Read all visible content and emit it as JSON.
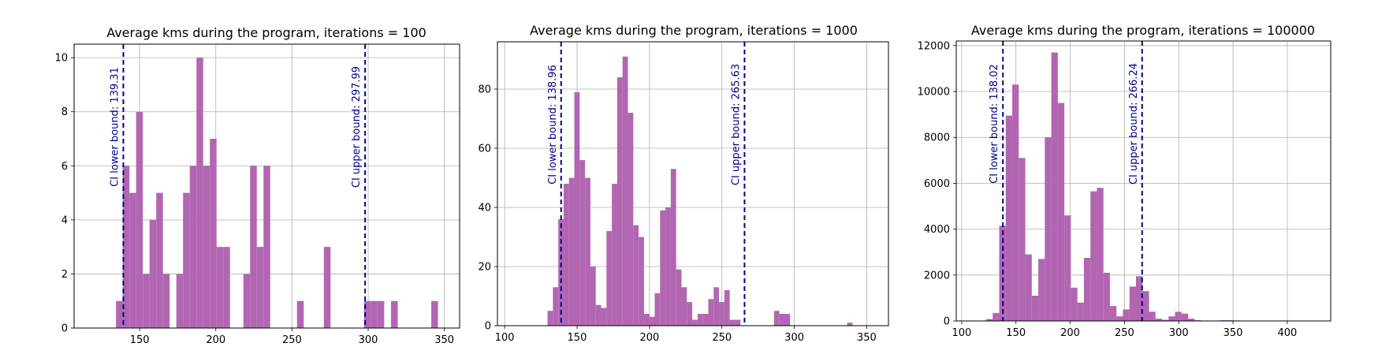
{
  "chart_data": [
    {
      "type": "histogram",
      "title": "Average kms during the program, iterations = 100",
      "xlabel": "",
      "ylabel": "",
      "xlim": [
        107,
        360
      ],
      "ylim": [
        0,
        10.5
      ],
      "xticks": [
        150,
        200,
        250,
        300,
        350
      ],
      "yticks": [
        0,
        2,
        4,
        6,
        8,
        10
      ],
      "grid": true,
      "bar_color": "#b266b2",
      "line_color": "#00008b",
      "bins": [
        {
          "x0": 134.5,
          "x1": 138.9,
          "count": 1
        },
        {
          "x0": 138.9,
          "x1": 143.3,
          "count": 6
        },
        {
          "x0": 143.3,
          "x1": 147.7,
          "count": 5
        },
        {
          "x0": 147.7,
          "x1": 152.1,
          "count": 8
        },
        {
          "x0": 152.1,
          "x1": 156.5,
          "count": 2
        },
        {
          "x0": 156.5,
          "x1": 160.9,
          "count": 4
        },
        {
          "x0": 160.9,
          "x1": 165.3,
          "count": 5
        },
        {
          "x0": 165.3,
          "x1": 169.7,
          "count": 2
        },
        {
          "x0": 169.7,
          "x1": 174.1,
          "count": 0
        },
        {
          "x0": 174.1,
          "x1": 178.5,
          "count": 2
        },
        {
          "x0": 178.5,
          "x1": 182.9,
          "count": 5
        },
        {
          "x0": 182.9,
          "x1": 187.3,
          "count": 6
        },
        {
          "x0": 187.3,
          "x1": 191.7,
          "count": 10
        },
        {
          "x0": 191.7,
          "x1": 196.1,
          "count": 6
        },
        {
          "x0": 196.1,
          "x1": 200.5,
          "count": 7
        },
        {
          "x0": 200.5,
          "x1": 204.9,
          "count": 3
        },
        {
          "x0": 204.9,
          "x1": 209.3,
          "count": 3
        },
        {
          "x0": 218.1,
          "x1": 222.5,
          "count": 2
        },
        {
          "x0": 222.5,
          "x1": 226.9,
          "count": 6
        },
        {
          "x0": 226.9,
          "x1": 231.3,
          "count": 3
        },
        {
          "x0": 231.3,
          "x1": 235.7,
          "count": 6
        },
        {
          "x0": 253.3,
          "x1": 257.7,
          "count": 1
        },
        {
          "x0": 270.9,
          "x1": 275.3,
          "count": 3
        },
        {
          "x0": 297.3,
          "x1": 301.7,
          "count": 1
        },
        {
          "x0": 301.7,
          "x1": 306.1,
          "count": 1
        },
        {
          "x0": 306.1,
          "x1": 310.5,
          "count": 1
        },
        {
          "x0": 315.0,
          "x1": 319.4,
          "count": 1
        },
        {
          "x0": 341.4,
          "x1": 345.8,
          "count": 1
        }
      ],
      "ci_lines": [
        {
          "value": 139.31,
          "label": "CI lower bound: 139.31"
        },
        {
          "value": 297.99,
          "label": "CI upper bound: 297.99"
        }
      ]
    },
    {
      "type": "histogram",
      "title": "Average kms during the program, iterations = 1000",
      "xlabel": "",
      "ylabel": "",
      "xlim": [
        95,
        365
      ],
      "ylim": [
        0,
        96
      ],
      "xticks": [
        100,
        150,
        200,
        250,
        300,
        350
      ],
      "yticks": [
        0,
        20,
        40,
        60,
        80
      ],
      "grid": true,
      "bar_color": "#b266b2",
      "line_color": "#00008b",
      "bins": [
        {
          "x0": 129.6,
          "x1": 133.3,
          "count": 5
        },
        {
          "x0": 133.3,
          "x1": 137.0,
          "count": 13
        },
        {
          "x0": 137.0,
          "x1": 140.7,
          "count": 36
        },
        {
          "x0": 140.7,
          "x1": 144.4,
          "count": 48
        },
        {
          "x0": 144.4,
          "x1": 148.1,
          "count": 50
        },
        {
          "x0": 148.1,
          "x1": 151.8,
          "count": 79
        },
        {
          "x0": 151.8,
          "x1": 155.5,
          "count": 56
        },
        {
          "x0": 155.5,
          "x1": 159.2,
          "count": 50
        },
        {
          "x0": 159.2,
          "x1": 162.9,
          "count": 20
        },
        {
          "x0": 162.9,
          "x1": 166.6,
          "count": 7
        },
        {
          "x0": 166.6,
          "x1": 170.3,
          "count": 6
        },
        {
          "x0": 170.3,
          "x1": 174.0,
          "count": 32
        },
        {
          "x0": 174.0,
          "x1": 177.7,
          "count": 48
        },
        {
          "x0": 177.7,
          "x1": 181.4,
          "count": 84
        },
        {
          "x0": 181.4,
          "x1": 185.1,
          "count": 91
        },
        {
          "x0": 185.1,
          "x1": 188.8,
          "count": 72
        },
        {
          "x0": 188.8,
          "x1": 192.5,
          "count": 34
        },
        {
          "x0": 192.5,
          "x1": 196.2,
          "count": 30
        },
        {
          "x0": 196.2,
          "x1": 199.9,
          "count": 4
        },
        {
          "x0": 199.9,
          "x1": 203.6,
          "count": 3
        },
        {
          "x0": 203.6,
          "x1": 207.3,
          "count": 11
        },
        {
          "x0": 207.3,
          "x1": 211.0,
          "count": 39
        },
        {
          "x0": 211.0,
          "x1": 214.7,
          "count": 40
        },
        {
          "x0": 214.7,
          "x1": 218.4,
          "count": 53
        },
        {
          "x0": 218.4,
          "x1": 222.1,
          "count": 19
        },
        {
          "x0": 222.1,
          "x1": 225.8,
          "count": 13
        },
        {
          "x0": 225.8,
          "x1": 229.5,
          "count": 8
        },
        {
          "x0": 229.5,
          "x1": 233.2,
          "count": 2
        },
        {
          "x0": 233.2,
          "x1": 236.9,
          "count": 4
        },
        {
          "x0": 236.9,
          "x1": 240.6,
          "count": 4
        },
        {
          "x0": 240.6,
          "x1": 244.3,
          "count": 9
        },
        {
          "x0": 244.3,
          "x1": 248.0,
          "count": 13
        },
        {
          "x0": 248.0,
          "x1": 251.7,
          "count": 8
        },
        {
          "x0": 251.7,
          "x1": 255.4,
          "count": 12
        },
        {
          "x0": 255.4,
          "x1": 259.1,
          "count": 2
        },
        {
          "x0": 259.1,
          "x1": 262.8,
          "count": 2
        },
        {
          "x0": 286.0,
          "x1": 289.7,
          "count": 5
        },
        {
          "x0": 289.7,
          "x1": 293.4,
          "count": 4
        },
        {
          "x0": 293.4,
          "x1": 297.1,
          "count": 4
        },
        {
          "x0": 336.5,
          "x1": 340.2,
          "count": 1
        }
      ],
      "ci_lines": [
        {
          "value": 138.96,
          "label": "CI lower bound: 138.96"
        },
        {
          "value": 265.63,
          "label": "CI upper bound: 265.63"
        }
      ]
    },
    {
      "type": "histogram",
      "title": "Average kms during the program, iterations = 100000",
      "xlabel": "",
      "ylabel": "",
      "xlim": [
        95,
        440
      ],
      "ylim": [
        0,
        12200
      ],
      "xticks": [
        100,
        150,
        200,
        250,
        300,
        350,
        400
      ],
      "yticks": [
        0,
        2000,
        4000,
        6000,
        8000,
        10000,
        12000
      ],
      "grid": true,
      "bar_color": "#b266b2",
      "line_color": "#00008b",
      "bins": [
        {
          "x0": 122.6,
          "x1": 128.6,
          "count": 80
        },
        {
          "x0": 128.6,
          "x1": 134.6,
          "count": 350
        },
        {
          "x0": 134.6,
          "x1": 140.6,
          "count": 4150
        },
        {
          "x0": 140.6,
          "x1": 146.6,
          "count": 8950
        },
        {
          "x0": 146.6,
          "x1": 152.6,
          "count": 10300
        },
        {
          "x0": 152.6,
          "x1": 158.6,
          "count": 7100
        },
        {
          "x0": 158.6,
          "x1": 164.6,
          "count": 2900
        },
        {
          "x0": 164.6,
          "x1": 170.6,
          "count": 1100
        },
        {
          "x0": 170.6,
          "x1": 176.6,
          "count": 2700
        },
        {
          "x0": 176.6,
          "x1": 182.6,
          "count": 8000
        },
        {
          "x0": 182.6,
          "x1": 188.6,
          "count": 11700
        },
        {
          "x0": 188.6,
          "x1": 194.6,
          "count": 9500
        },
        {
          "x0": 194.6,
          "x1": 200.6,
          "count": 4600
        },
        {
          "x0": 200.6,
          "x1": 206.6,
          "count": 1450
        },
        {
          "x0": 206.6,
          "x1": 212.6,
          "count": 800
        },
        {
          "x0": 212.6,
          "x1": 218.6,
          "count": 2750
        },
        {
          "x0": 218.6,
          "x1": 224.6,
          "count": 5650
        },
        {
          "x0": 224.6,
          "x1": 230.6,
          "count": 5800
        },
        {
          "x0": 230.6,
          "x1": 236.6,
          "count": 2100
        },
        {
          "x0": 236.6,
          "x1": 242.6,
          "count": 650
        },
        {
          "x0": 242.6,
          "x1": 248.6,
          "count": 200
        },
        {
          "x0": 248.6,
          "x1": 254.6,
          "count": 500
        },
        {
          "x0": 254.6,
          "x1": 260.6,
          "count": 1500
        },
        {
          "x0": 260.6,
          "x1": 266.6,
          "count": 1950
        },
        {
          "x0": 266.6,
          "x1": 272.6,
          "count": 1300
        },
        {
          "x0": 272.6,
          "x1": 278.6,
          "count": 400
        },
        {
          "x0": 278.6,
          "x1": 284.6,
          "count": 100
        },
        {
          "x0": 284.6,
          "x1": 290.6,
          "count": 50
        },
        {
          "x0": 290.6,
          "x1": 296.6,
          "count": 200
        },
        {
          "x0": 296.6,
          "x1": 302.6,
          "count": 400
        },
        {
          "x0": 302.6,
          "x1": 308.6,
          "count": 320
        },
        {
          "x0": 308.6,
          "x1": 314.6,
          "count": 100
        },
        {
          "x0": 314.6,
          "x1": 320.6,
          "count": 30
        },
        {
          "x0": 338.6,
          "x1": 344.6,
          "count": 30
        },
        {
          "x0": 344.6,
          "x1": 350.6,
          "count": 30
        },
        {
          "x0": 350.6,
          "x1": 356.6,
          "count": 20
        }
      ],
      "ci_lines": [
        {
          "value": 138.02,
          "label": "CI lower bound: 138.02"
        },
        {
          "value": 266.24,
          "label": "CI upper bound: 266.24"
        }
      ]
    }
  ]
}
